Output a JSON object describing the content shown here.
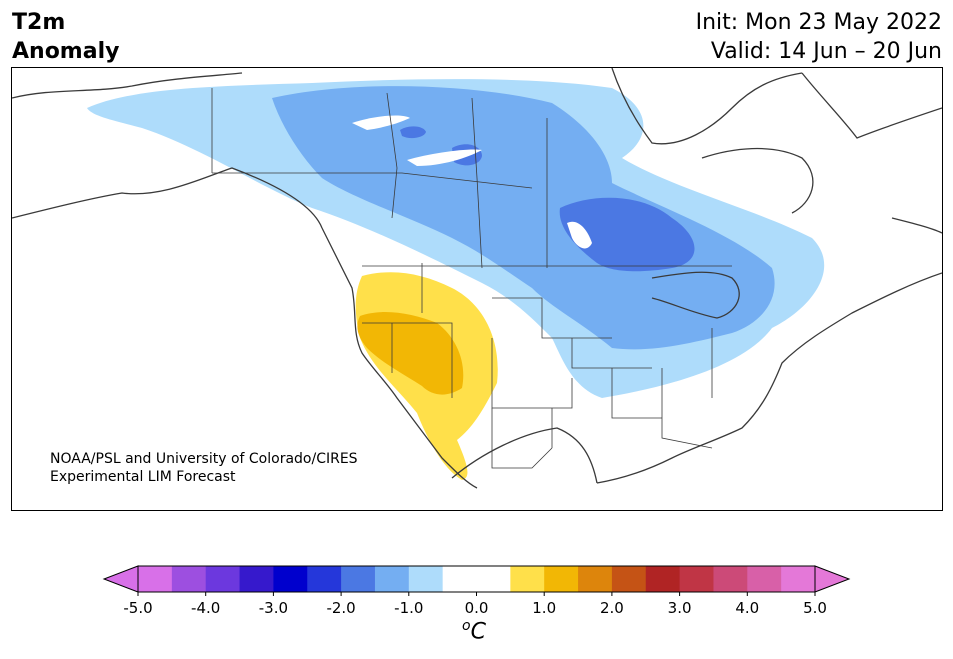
{
  "title": {
    "line1": "T2m",
    "line2": "Anomaly"
  },
  "init": "Init: Mon 23 May 2022",
  "valid": "Valid: 14 Jun – 20 Jun",
  "credit": {
    "line1": "NOAA/PSL and University of Colorado/CIRES",
    "line2": "Experimental LIM Forecast"
  },
  "colorbar": {
    "ticks": [
      "-5.0",
      "-4.0",
      "-3.0",
      "-2.0",
      "-1.0",
      "0.0",
      "1.0",
      "2.0",
      "3.0",
      "4.0",
      "5.0"
    ],
    "unit_sup": "o",
    "unit": "C",
    "colors": [
      "#d870e8",
      "#9d4fe0",
      "#6c38de",
      "#3619cc",
      "#0000cd",
      "#2537da",
      "#4b78e3",
      "#74aef2",
      "#aedcfb",
      "#ffffff",
      "#ffffff",
      "#ffe04a",
      "#f2b705",
      "#dd850c",
      "#c55315",
      "#b02424",
      "#c03545",
      "#cc4a78",
      "#d860a8",
      "#e478d8"
    ],
    "under_color": "#d870e8",
    "over_color": "#e478d8"
  },
  "anomaly_colors": {
    "cool_1": "#aedcfb",
    "cool_2": "#74aef2",
    "cool_3": "#4b78e3",
    "warm_1": "#ffe04a",
    "warm_2": "#f2b705"
  }
}
